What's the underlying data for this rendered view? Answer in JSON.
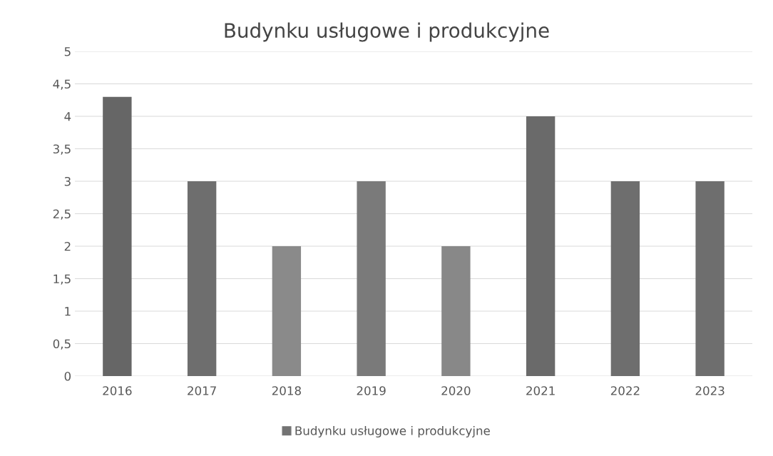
{
  "chart_data": {
    "type": "bar",
    "title": "Budynku usługowe i produkcyjne",
    "categories": [
      "2016",
      "2017",
      "2018",
      "2019",
      "2020",
      "2021",
      "2022",
      "2023"
    ],
    "series": [
      {
        "name": "Budynku usługowe i produkcyjne",
        "color": "#737373",
        "colors": [
          "#666666",
          "#6e6e6e",
          "#8a8a8a",
          "#7a7a7a",
          "#888888",
          "#6a6a6a",
          "#6e6e6e",
          "#6e6e6e"
        ],
        "values": [
          4.3,
          3,
          2,
          3,
          2,
          4,
          3,
          3
        ]
      }
    ],
    "ylim": [
      0,
      5
    ],
    "yticks": [
      0,
      {
        "value": 0.5,
        "label": "0,5"
      },
      1,
      {
        "value": 1.5,
        "label": "1,5"
      },
      2,
      {
        "value": 2.5,
        "label": "2,5"
      },
      3,
      {
        "value": 3.5,
        "label": "3,5"
      },
      4,
      {
        "value": 4.5,
        "label": "4,5"
      },
      5
    ],
    "grid": "y",
    "legend": "bottom"
  }
}
